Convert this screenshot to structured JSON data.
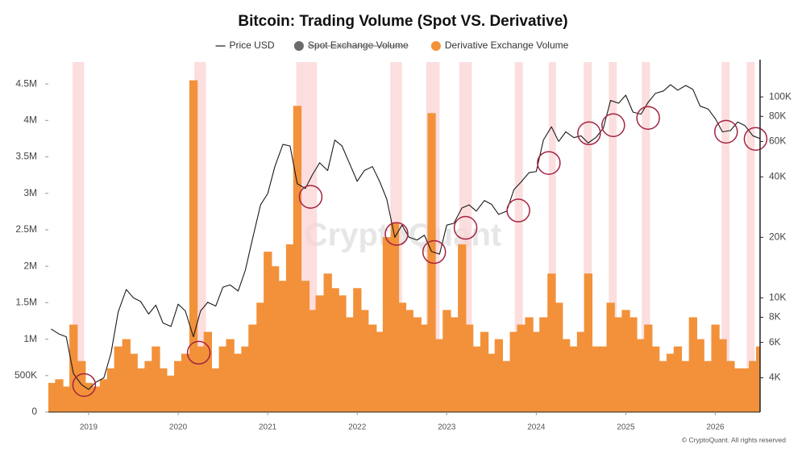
{
  "chart_data": {
    "type": "combo",
    "title": "Bitcoin: Trading Volume (Spot VS. Derivative)",
    "watermark": "CryptoQuant",
    "footer": "© CryptoQuant. All rights reserved",
    "x": [
      2018.58,
      2018.67,
      2018.75,
      2018.83,
      2018.92,
      2019.0,
      2019.08,
      2019.17,
      2019.25,
      2019.33,
      2019.42,
      2019.5,
      2019.58,
      2019.67,
      2019.75,
      2019.83,
      2019.92,
      2020.0,
      2020.08,
      2020.17,
      2020.25,
      2020.33,
      2020.42,
      2020.5,
      2020.58,
      2020.67,
      2020.75,
      2020.83,
      2020.92,
      2021.0,
      2021.08,
      2021.17,
      2021.25,
      2021.33,
      2021.42,
      2021.5,
      2021.58,
      2021.67,
      2021.75,
      2021.83,
      2021.92,
      2022.0,
      2022.08,
      2022.17,
      2022.25,
      2022.33,
      2022.42,
      2022.5,
      2022.58,
      2022.67,
      2022.75,
      2022.83,
      2022.92,
      2023.0,
      2023.08,
      2023.17,
      2023.25,
      2023.33,
      2023.42,
      2023.5,
      2023.58,
      2023.67,
      2023.75,
      2023.83,
      2023.92,
      2024.0,
      2024.08,
      2024.17,
      2024.25,
      2024.33,
      2024.42,
      2024.5,
      2024.58,
      2024.67,
      2024.75,
      2024.83,
      2024.92,
      2025.0,
      2025.08,
      2025.17,
      2025.25,
      2025.33,
      2025.42,
      2025.5,
      2025.58,
      2025.67,
      2025.75,
      2025.83,
      2025.92,
      2026.0,
      2026.08,
      2026.17,
      2026.25,
      2026.33,
      2026.42,
      2026.5
    ],
    "series": [
      {
        "name": "Price USD",
        "type": "line",
        "axis": "y2",
        "color": "#1a1a1a",
        "visible": true,
        "values": [
          7000,
          6600,
          6400,
          4200,
          3700,
          3500,
          3800,
          4000,
          5300,
          8500,
          11000,
          10000,
          9600,
          8300,
          9200,
          7500,
          7200,
          9300,
          8600,
          6400,
          8600,
          9500,
          9100,
          11300,
          11600,
          10800,
          13700,
          19600,
          29000,
          33000,
          45000,
          58000,
          57000,
          37000,
          35000,
          41000,
          47000,
          43000,
          61000,
          57000,
          46000,
          38000,
          43000,
          45000,
          38000,
          31000,
          20000,
          23000,
          20000,
          19400,
          20500,
          17000,
          16500,
          23000,
          23500,
          28000,
          29000,
          27000,
          30500,
          29200,
          26000,
          27000,
          34500,
          37700,
          42000,
          42500,
          61000,
          71000,
          60000,
          67000,
          62700,
          64000,
          59000,
          63000,
          70000,
          96000,
          93000,
          102000,
          84000,
          82000,
          94000,
          104000,
          107000,
          115000,
          108000,
          114000,
          109000,
          90000,
          87000,
          78000,
          67000,
          68000,
          75000,
          72000,
          64000,
          62000
        ]
      },
      {
        "name": "Spot Exchange Volume",
        "type": "bar",
        "color": "#6b6b6b",
        "visible": false
      },
      {
        "name": "Derivative Exchange Volume",
        "type": "bar",
        "axis": "y",
        "color": "#f2913a",
        "visible": true,
        "values": [
          400000,
          450000,
          350000,
          1200000,
          700000,
          400000,
          350000,
          450000,
          600000,
          900000,
          1000000,
          800000,
          600000,
          700000,
          900000,
          600000,
          500000,
          700000,
          800000,
          4550000,
          900000,
          1100000,
          600000,
          900000,
          1000000,
          800000,
          900000,
          1200000,
          1500000,
          2200000,
          2000000,
          1800000,
          2300000,
          4200000,
          1800000,
          1400000,
          1600000,
          1900000,
          1700000,
          1600000,
          1300000,
          1700000,
          1400000,
          1200000,
          1100000,
          2400000,
          2600000,
          1500000,
          1400000,
          1300000,
          1200000,
          4100000,
          1000000,
          1400000,
          1300000,
          2300000,
          1200000,
          900000,
          1100000,
          800000,
          1000000,
          700000,
          1100000,
          1200000,
          1300000,
          1100000,
          1300000,
          1900000,
          1500000,
          1000000,
          900000,
          1100000,
          1900000,
          900000,
          900000,
          1500000,
          1300000,
          1400000,
          1300000,
          1000000,
          1200000,
          900000,
          700000,
          800000,
          900000,
          700000,
          1300000,
          1000000,
          700000,
          1200000,
          1000000,
          700000,
          600000,
          600000,
          700000,
          900000
        ]
      }
    ],
    "xlim": [
      2018.55,
      2026.5
    ],
    "xticks": [
      2019,
      2020,
      2021,
      2022,
      2023,
      2024,
      2025,
      2026
    ],
    "ylim": [
      0,
      4800000
    ],
    "yticks": [
      0,
      {
        "value": 500000,
        "label": "500K"
      },
      {
        "value": 1000000,
        "label": "1M"
      },
      {
        "value": 1500000,
        "label": "1.5M"
      },
      {
        "value": 2000000,
        "label": "2M"
      },
      {
        "value": 2500000,
        "label": "2.5M"
      },
      {
        "value": 3000000,
        "label": "3M"
      },
      {
        "value": 3500000,
        "label": "3.5M"
      },
      {
        "value": 4000000,
        "label": "4M"
      },
      {
        "value": 4500000,
        "label": "4.5M"
      }
    ],
    "y2lim": [
      2700,
      149000
    ],
    "y2_log": true,
    "y2ticks": [
      {
        "value": 4000,
        "label": "4K"
      },
      {
        "value": 6000,
        "label": "6K"
      },
      {
        "value": 8000,
        "label": "8K"
      },
      {
        "value": 10000,
        "label": "10K"
      },
      {
        "value": 20000,
        "label": "20K"
      },
      {
        "value": 40000,
        "label": "40K"
      },
      {
        "value": 60000,
        "label": "60K"
      },
      {
        "value": 80000,
        "label": "80K"
      },
      {
        "value": 100000,
        "label": "100K"
      }
    ],
    "grid": false,
    "legend": "top",
    "highlight_color": "#fbd3d3",
    "highlight_ranges": [
      [
        2018.82,
        2018.95
      ],
      [
        2020.18,
        2020.31
      ],
      [
        2021.32,
        2021.55
      ],
      [
        2022.37,
        2022.5
      ],
      [
        2022.77,
        2022.92
      ],
      [
        2023.14,
        2023.28
      ],
      [
        2023.76,
        2023.85
      ],
      [
        2024.14,
        2024.22
      ],
      [
        2024.53,
        2024.62
      ],
      [
        2024.81,
        2024.9
      ],
      [
        2025.18,
        2025.27
      ],
      [
        2026.07,
        2026.16
      ],
      [
        2026.35,
        2026.44
      ]
    ],
    "circle_color": "#a3233f",
    "circles": [
      {
        "x": 2018.95,
        "y": 3680
      },
      {
        "x": 2020.23,
        "y": 5330
      },
      {
        "x": 2021.48,
        "y": 31800
      },
      {
        "x": 2022.44,
        "y": 20800
      },
      {
        "x": 2022.86,
        "y": 16900
      },
      {
        "x": 2023.21,
        "y": 22300
      },
      {
        "x": 2023.8,
        "y": 27200
      },
      {
        "x": 2024.14,
        "y": 46900
      },
      {
        "x": 2024.59,
        "y": 65900
      },
      {
        "x": 2024.86,
        "y": 72300
      },
      {
        "x": 2025.25,
        "y": 78600
      },
      {
        "x": 2026.12,
        "y": 67100
      },
      {
        "x": 2026.45,
        "y": 61800
      }
    ]
  }
}
